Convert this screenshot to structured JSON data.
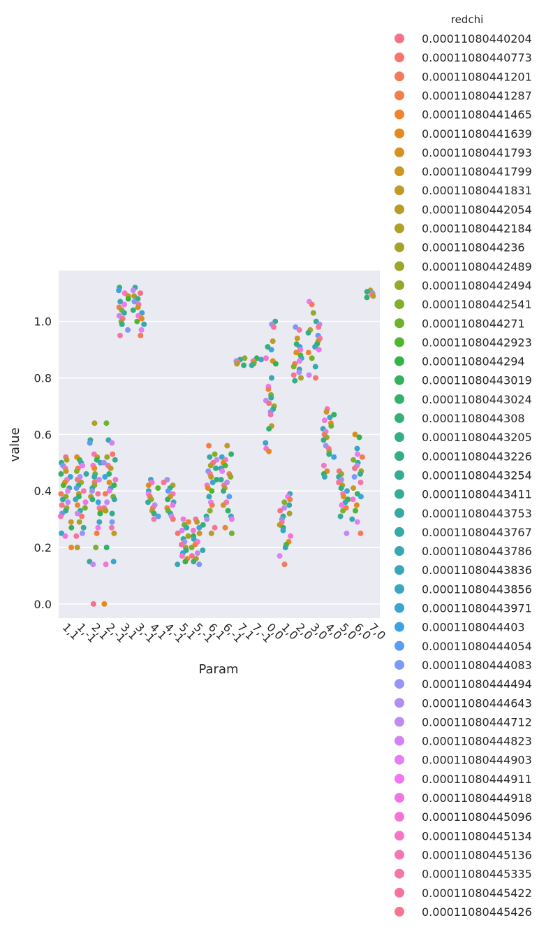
{
  "chart_data": {
    "type": "scatter",
    "style": "strip plot, jittered",
    "xlabel": "Param",
    "ylabel": "value",
    "categories": [
      "1,1",
      "1,-1",
      "2,1",
      "2,-1",
      "3,1",
      "3,-1",
      "4,1",
      "4,-1",
      "5,1",
      "5,-1",
      "6,1",
      "6,-1",
      "7,1",
      "7,-1",
      "0,0",
      "1,0",
      "2,0",
      "3,0",
      "4,0",
      "5,0",
      "6,0",
      "7,0"
    ],
    "ylim": [
      -0.05,
      1.18
    ],
    "yticks": [
      "0.0",
      "0.2",
      "0.4",
      "0.6",
      "0.8",
      "1.0"
    ],
    "grid": true,
    "legend_placement": "right, outside plot",
    "legend_title": "redchi",
    "legend": [
      {
        "label": "0.00011080440204",
        "color": "#f77189"
      },
      {
        "label": "0.00011080440773",
        "color": "#f7756e"
      },
      {
        "label": "0.00011080441201",
        "color": "#f47a5c"
      },
      {
        "label": "0.00011080441287",
        "color": "#f27f49"
      },
      {
        "label": "0.00011080441465",
        "color": "#f0842d"
      },
      {
        "label": "0.00011080441639",
        "color": "#e5891f"
      },
      {
        "label": "0.00011080441793",
        "color": "#d99023"
      },
      {
        "label": "0.00011080441799",
        "color": "#cd9524"
      },
      {
        "label": "0.00011080441831",
        "color": "#c39926"
      },
      {
        "label": "0.00011080442054",
        "color": "#b99c27"
      },
      {
        "label": "0.00011080442184",
        "color": "#b09f28"
      },
      {
        "label": "0.0001108044236",
        "color": "#a6a229"
      },
      {
        "label": "0.00011080442489",
        "color": "#9ca629"
      },
      {
        "label": "0.00011080442494",
        "color": "#90aa2a"
      },
      {
        "label": "0.00011080442541",
        "color": "#82ae2c"
      },
      {
        "label": "0.0001108044271",
        "color": "#6db32d"
      },
      {
        "label": "0.00011080442923",
        "color": "#4fb72f"
      },
      {
        "label": "0.0001108044294",
        "color": "#32b447"
      },
      {
        "label": "0.00011080443019",
        "color": "#33b25e"
      },
      {
        "label": "0.00011080443024",
        "color": "#33b16c"
      },
      {
        "label": "0.0001108044308",
        "color": "#34af77"
      },
      {
        "label": "0.00011080443205",
        "color": "#35ae81"
      },
      {
        "label": "0.00011080443226",
        "color": "#35ad89"
      },
      {
        "label": "0.00011080443254",
        "color": "#36ac91"
      },
      {
        "label": "0.00011080443411",
        "color": "#36ab99"
      },
      {
        "label": "0.00011080443753",
        "color": "#37aaa0"
      },
      {
        "label": "0.00011080443767",
        "color": "#37a9a8"
      },
      {
        "label": "0.00011080443786",
        "color": "#38a8b0"
      },
      {
        "label": "0.00011080443836",
        "color": "#39a7b8"
      },
      {
        "label": "0.00011080443856",
        "color": "#3aa6c2"
      },
      {
        "label": "0.00011080443971",
        "color": "#3ba4cf"
      },
      {
        "label": "0.0001108044403",
        "color": "#3da2e0"
      },
      {
        "label": "0.00011080444054",
        "color": "#5a9df2"
      },
      {
        "label": "0.00011080444083",
        "color": "#7d99f4"
      },
      {
        "label": "0.00011080444494",
        "color": "#9994f4"
      },
      {
        "label": "0.00011080444643",
        "color": "#ae8ff4"
      },
      {
        "label": "0.00011080444712",
        "color": "#c089f4"
      },
      {
        "label": "0.00011080444823",
        "color": "#d382f4"
      },
      {
        "label": "0.00011080444903",
        "color": "#e37ef4"
      },
      {
        "label": "0.00011080444911",
        "color": "#f077f0"
      },
      {
        "label": "0.00011080444918",
        "color": "#f274e6"
      },
      {
        "label": "0.00011080445096",
        "color": "#f474d6"
      },
      {
        "label": "0.00011080445134",
        "color": "#f575c6"
      },
      {
        "label": "0.00011080445136",
        "color": "#f575b6"
      },
      {
        "label": "0.00011080445335",
        "color": "#f675a8"
      },
      {
        "label": "0.00011080445422",
        "color": "#f6749b"
      },
      {
        "label": "0.00011080445426",
        "color": "#f77492"
      }
    ],
    "series_values": [
      [
        0.52,
        0.51,
        0.5,
        0.49,
        0.48,
        0.47,
        0.46,
        0.45,
        0.44,
        0.43,
        0.42,
        0.41,
        0.4,
        0.39,
        0.38,
        0.37,
        0.36,
        0.35,
        0.34,
        0.33,
        0.32,
        0.31,
        0.29,
        0.27,
        0.25,
        0.24,
        0.2
      ],
      [
        0.52,
        0.51,
        0.5,
        0.49,
        0.48,
        0.47,
        0.46,
        0.45,
        0.44,
        0.43,
        0.42,
        0.41,
        0.4,
        0.39,
        0.38,
        0.37,
        0.36,
        0.35,
        0.34,
        0.33,
        0.32,
        0.31,
        0.29,
        0.27,
        0.25,
        0.24,
        0.2
      ],
      [
        0.64,
        0.58,
        0.57,
        0.53,
        0.52,
        0.51,
        0.5,
        0.49,
        0.48,
        0.46,
        0.45,
        0.44,
        0.43,
        0.42,
        0.41,
        0.4,
        0.39,
        0.38,
        0.37,
        0.36,
        0.34,
        0.33,
        0.32,
        0.29,
        0.27,
        0.25,
        0.2,
        0.15,
        0.14,
        0.0
      ],
      [
        0.64,
        0.58,
        0.57,
        0.53,
        0.52,
        0.51,
        0.5,
        0.49,
        0.48,
        0.46,
        0.45,
        0.44,
        0.43,
        0.42,
        0.41,
        0.4,
        0.39,
        0.38,
        0.37,
        0.36,
        0.34,
        0.33,
        0.32,
        0.29,
        0.27,
        0.25,
        0.2,
        0.15,
        0.14,
        0.0
      ],
      [
        1.12,
        1.11,
        1.1,
        1.09,
        1.08,
        1.07,
        1.06,
        1.05,
        1.04,
        1.03,
        1.02,
        1.01,
        1.0,
        0.99,
        0.97,
        0.95
      ],
      [
        1.12,
        1.11,
        1.1,
        1.09,
        1.08,
        1.07,
        1.06,
        1.05,
        1.04,
        1.03,
        1.02,
        1.01,
        1.0,
        0.99,
        0.97,
        0.95
      ],
      [
        0.44,
        0.43,
        0.42,
        0.41,
        0.4,
        0.39,
        0.38,
        0.37,
        0.36,
        0.35,
        0.34,
        0.33,
        0.32,
        0.31,
        0.3
      ],
      [
        0.44,
        0.43,
        0.42,
        0.41,
        0.4,
        0.39,
        0.38,
        0.37,
        0.36,
        0.35,
        0.34,
        0.33,
        0.32,
        0.31,
        0.3
      ],
      [
        0.3,
        0.29,
        0.28,
        0.27,
        0.26,
        0.25,
        0.24,
        0.23,
        0.22,
        0.21,
        0.2,
        0.19,
        0.18,
        0.17,
        0.16,
        0.15,
        0.14
      ],
      [
        0.3,
        0.29,
        0.28,
        0.27,
        0.26,
        0.25,
        0.24,
        0.23,
        0.22,
        0.21,
        0.2,
        0.19,
        0.18,
        0.17,
        0.16,
        0.15,
        0.14
      ],
      [
        0.56,
        0.53,
        0.52,
        0.51,
        0.5,
        0.49,
        0.48,
        0.47,
        0.46,
        0.45,
        0.44,
        0.43,
        0.42,
        0.41,
        0.4,
        0.38,
        0.36,
        0.35,
        0.33,
        0.31,
        0.3,
        0.27,
        0.25
      ],
      [
        0.56,
        0.53,
        0.52,
        0.51,
        0.5,
        0.49,
        0.48,
        0.47,
        0.46,
        0.45,
        0.44,
        0.43,
        0.42,
        0.41,
        0.4,
        0.38,
        0.36,
        0.35,
        0.33,
        0.31,
        0.3,
        0.27,
        0.25
      ],
      [
        0.87,
        0.865,
        0.86,
        0.855,
        0.85,
        0.845
      ],
      [
        0.87,
        0.865,
        0.86,
        0.855,
        0.85,
        0.845
      ],
      [
        1.0,
        0.99,
        0.98,
        0.93,
        0.91,
        0.9,
        0.87,
        0.86,
        0.85,
        0.8,
        0.77,
        0.76,
        0.74,
        0.73,
        0.72,
        0.71,
        0.7,
        0.69,
        0.68,
        0.67,
        0.63,
        0.62,
        0.57,
        0.55,
        0.54
      ],
      [
        0.39,
        0.38,
        0.37,
        0.36,
        0.35,
        0.34,
        0.33,
        0.32,
        0.31,
        0.3,
        0.29,
        0.28,
        0.27,
        0.26,
        0.24,
        0.22,
        0.21,
        0.2,
        0.17,
        0.14
      ],
      [
        0.98,
        0.97,
        0.94,
        0.92,
        0.91,
        0.9,
        0.89,
        0.88,
        0.87,
        0.86,
        0.85,
        0.84,
        0.83,
        0.82,
        0.81,
        0.8,
        0.79
      ],
      [
        1.07,
        1.06,
        1.03,
        1.0,
        0.99,
        0.98,
        0.97,
        0.96,
        0.95,
        0.94,
        0.93,
        0.92,
        0.91,
        0.9,
        0.89,
        0.87,
        0.84,
        0.81,
        0.8
      ],
      [
        0.69,
        0.68,
        0.67,
        0.66,
        0.65,
        0.64,
        0.63,
        0.62,
        0.61,
        0.6,
        0.59,
        0.58,
        0.56,
        0.55,
        0.54,
        0.53,
        0.52,
        0.49,
        0.47,
        0.46,
        0.45
      ],
      [
        0.47,
        0.46,
        0.45,
        0.44,
        0.43,
        0.42,
        0.41,
        0.4,
        0.39,
        0.38,
        0.37,
        0.36,
        0.35,
        0.34,
        0.33,
        0.31,
        0.25
      ],
      [
        0.6,
        0.59,
        0.55,
        0.53,
        0.52,
        0.51,
        0.5,
        0.49,
        0.48,
        0.47,
        0.46,
        0.45,
        0.43,
        0.41,
        0.39,
        0.38,
        0.37,
        0.35,
        0.33,
        0.3,
        0.29,
        0.25
      ],
      [
        1.11,
        1.105,
        1.1,
        1.095,
        1.09,
        1.085
      ]
    ]
  }
}
